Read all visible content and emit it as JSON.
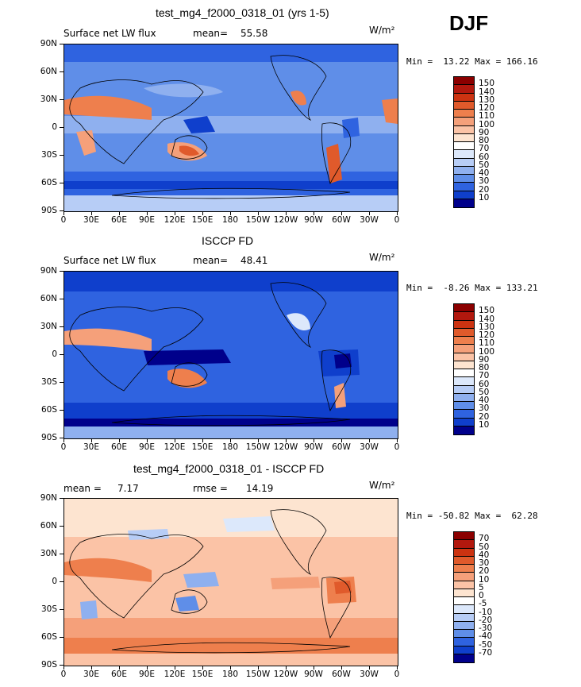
{
  "season": "DJF",
  "units": "W/m²",
  "x_ticks": [
    "0",
    "30E",
    "60E",
    "90E",
    "120E",
    "150E",
    "180",
    "150W",
    "120W",
    "90W",
    "60W",
    "30W",
    "0"
  ],
  "y_ticks": [
    "90N",
    "60N",
    "30N",
    "0",
    "30S",
    "60S",
    "90S"
  ],
  "panels": [
    {
      "title": "test_mg4_f2000_0318_01 (yrs 1-5)",
      "left_label": "Surface net LW flux",
      "stat_label": "mean=",
      "stat_value": "55.58",
      "units": "W/m²",
      "minmax": "Min =  13.22 Max = 166.16",
      "colorbar_labels": [
        "150",
        "140",
        "130",
        "120",
        "110",
        "100",
        "90",
        "80",
        "70",
        "60",
        "50",
        "40",
        "30",
        "20",
        "10"
      ],
      "colorbar_colors": [
        "#8b0000",
        "#b2180e",
        "#cc3311",
        "#e05a2b",
        "#ee7f4d",
        "#f5a07a",
        "#fbc3a6",
        "#fde4d0",
        "#ffffff",
        "#dce8fb",
        "#b7cdf6",
        "#8fb0ef",
        "#5f8ee8",
        "#2f63e0",
        "#0f3fcc",
        "#00008b"
      ]
    },
    {
      "title": "ISCCP FD",
      "left_label": "Surface net LW flux",
      "stat_label": "mean=",
      "stat_value": "48.41",
      "units": "W/m²",
      "minmax": "Min =  -8.26 Max = 133.21",
      "colorbar_labels": [
        "150",
        "140",
        "130",
        "120",
        "110",
        "100",
        "90",
        "80",
        "70",
        "60",
        "50",
        "40",
        "30",
        "20",
        "10"
      ],
      "colorbar_colors": [
        "#8b0000",
        "#b2180e",
        "#cc3311",
        "#e05a2b",
        "#ee7f4d",
        "#f5a07a",
        "#fbc3a6",
        "#fde4d0",
        "#ffffff",
        "#dce8fb",
        "#b7cdf6",
        "#8fb0ef",
        "#5f8ee8",
        "#2f63e0",
        "#0f3fcc",
        "#00008b"
      ]
    },
    {
      "title": "test_mg4_f2000_0318_01 - ISCCP FD",
      "left_label": "mean =",
      "left_value": "7.17",
      "stat_label": "rmse =",
      "stat_value": "14.19",
      "units": "W/m²",
      "minmax": "Min = -50.82 Max =  62.28",
      "colorbar_labels": [
        "70",
        "50",
        "40",
        "30",
        "20",
        "10",
        "5",
        "0",
        "-5",
        "-10",
        "-20",
        "-30",
        "-40",
        "-50",
        "-70"
      ],
      "colorbar_colors": [
        "#8b0000",
        "#b2180e",
        "#cc3311",
        "#e05a2b",
        "#ee7f4d",
        "#f5a07a",
        "#fbc3a6",
        "#fde4d0",
        "#ffffff",
        "#dce8fb",
        "#b7cdf6",
        "#8fb0ef",
        "#5f8ee8",
        "#2f63e0",
        "#0f3fcc",
        "#00008b"
      ]
    }
  ]
}
